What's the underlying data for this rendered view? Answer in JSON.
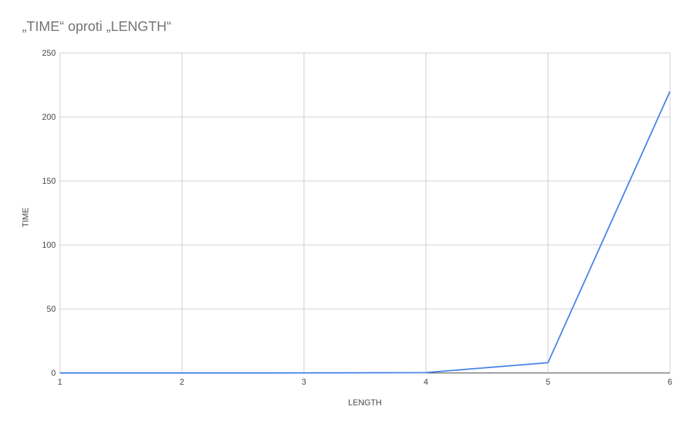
{
  "chart_data": {
    "type": "line",
    "title": "„TIME“ oproti „LENGTH“",
    "xlabel": "LENGTH",
    "ylabel": "TIME",
    "xlim": [
      1,
      6
    ],
    "ylim": [
      0,
      250
    ],
    "x_ticks": [
      1,
      2,
      3,
      4,
      5,
      6
    ],
    "y_ticks": [
      0,
      50,
      100,
      150,
      200,
      250
    ],
    "grid": true,
    "legend": "none",
    "series": [
      {
        "x": [
          1,
          2,
          3,
          4,
          5,
          6
        ],
        "values": [
          0,
          0,
          0.05,
          0.3,
          8,
          220
        ],
        "color": "#4a86e8"
      }
    ],
    "colors": {
      "grid": "#cccccc",
      "zero_axis": "#333333",
      "text": "#444444",
      "title": "#757575"
    }
  }
}
